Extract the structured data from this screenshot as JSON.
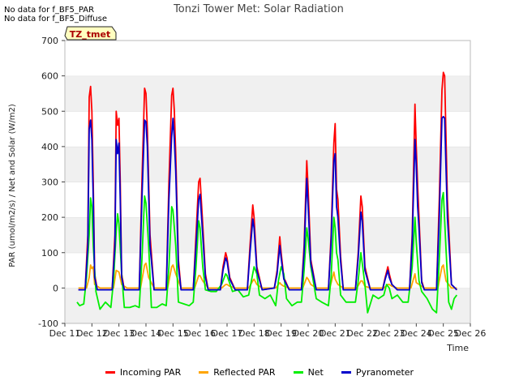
{
  "notes": [
    "No data for f_BF5_PAR",
    "No data for f_BF5_Diffuse"
  ],
  "chart_data": {
    "type": "line",
    "title": "Tonzi Tower Met: Solar Radiation",
    "xlabel": "Time",
    "ylabel": "PAR (umol/m2/s) / Net and Solar (W/m2)",
    "tag": "TZ_tmet",
    "ylim": [
      -100,
      700
    ],
    "yticks": [
      -100,
      0,
      100,
      200,
      300,
      400,
      500,
      600,
      700
    ],
    "xlim": [
      11,
      26
    ],
    "xticks": [
      11,
      12,
      13,
      14,
      15,
      16,
      17,
      18,
      19,
      20,
      21,
      22,
      23,
      24,
      25,
      26
    ],
    "xtick_labels": [
      "Dec 11",
      "Dec 12",
      "Dec 13",
      "Dec 14",
      "Dec 15",
      "Dec 16",
      "Dec 17",
      "Dec 18",
      "Dec 19",
      "Dec 20",
      "Dec 21",
      "Dec 22",
      "Dec 23",
      "Dec 24",
      "Dec 25",
      "Dec 26"
    ],
    "grid": "horizontal bands",
    "legend_position": "bottom",
    "series": [
      {
        "name": "Incoming PAR",
        "color": "#ff0000",
        "x": [
          11.5,
          11.75,
          11.85,
          11.9,
          11.95,
          12.0,
          12.05,
          12.1,
          12.2,
          12.3,
          12.75,
          12.85,
          12.9,
          12.95,
          13.0,
          13.05,
          13.1,
          13.2,
          13.3,
          13.75,
          13.85,
          13.95,
          14.0,
          14.05,
          14.15,
          14.3,
          14.75,
          14.85,
          14.95,
          15.0,
          15.05,
          15.1,
          15.2,
          15.3,
          15.75,
          15.85,
          15.95,
          16.0,
          16.1,
          16.2,
          16.3,
          16.75,
          16.85,
          16.95,
          17.0,
          17.1,
          17.3,
          17.75,
          17.85,
          17.95,
          18.0,
          18.1,
          18.3,
          18.75,
          18.85,
          18.95,
          19.0,
          19.1,
          19.3,
          19.75,
          19.85,
          19.95,
          20.0,
          20.1,
          20.3,
          20.75,
          20.85,
          20.95,
          21.0,
          21.05,
          21.1,
          21.2,
          21.3,
          21.75,
          21.85,
          21.95,
          22.0,
          22.1,
          22.3,
          22.75,
          22.85,
          22.95,
          23.0,
          23.1,
          23.3,
          23.75,
          23.85,
          23.95,
          24.0,
          24.05,
          24.1,
          24.2,
          24.3,
          24.75,
          24.85,
          24.95,
          25.0,
          25.05,
          25.15,
          25.3,
          25.5
        ],
        "y": [
          -5,
          -5,
          150,
          540,
          570,
          500,
          300,
          40,
          -5,
          -5,
          -5,
          150,
          500,
          460,
          480,
          300,
          40,
          -5,
          -5,
          -5,
          300,
          565,
          550,
          450,
          150,
          -5,
          -5,
          300,
          545,
          565,
          500,
          380,
          80,
          -5,
          -5,
          150,
          300,
          310,
          180,
          40,
          -5,
          -5,
          60,
          100,
          85,
          30,
          -5,
          -5,
          120,
          235,
          200,
          60,
          -5,
          0,
          50,
          145,
          100,
          30,
          -5,
          -5,
          120,
          360,
          280,
          80,
          -5,
          -5,
          150,
          410,
          465,
          280,
          250,
          90,
          -5,
          -5,
          100,
          260,
          230,
          60,
          -5,
          -5,
          30,
          60,
          40,
          10,
          -5,
          -5,
          150,
          520,
          400,
          290,
          200,
          20,
          -5,
          -5,
          250,
          560,
          610,
          600,
          250,
          10,
          -5
        ]
      },
      {
        "name": "Reflected PAR",
        "color": "#ffa500",
        "x": [
          11.5,
          11.8,
          11.9,
          11.95,
          12.0,
          12.05,
          12.1,
          12.3,
          12.8,
          12.9,
          13.0,
          13.1,
          13.3,
          13.8,
          13.95,
          14.0,
          14.1,
          14.3,
          14.8,
          14.95,
          15.0,
          15.1,
          15.3,
          15.8,
          15.95,
          16.0,
          16.1,
          16.3,
          16.8,
          16.95,
          17.0,
          17.1,
          17.3,
          17.8,
          17.95,
          18.0,
          18.1,
          18.3,
          18.8,
          18.95,
          19.0,
          19.1,
          19.3,
          19.8,
          19.95,
          20.0,
          20.1,
          20.3,
          20.8,
          20.95,
          21.0,
          21.1,
          21.3,
          21.8,
          21.95,
          22.0,
          22.1,
          22.3,
          22.8,
          22.95,
          23.0,
          23.1,
          23.3,
          23.8,
          23.95,
          24.0,
          24.1,
          24.3,
          24.8,
          24.95,
          25.0,
          25.1,
          25.3,
          25.5
        ],
        "y": [
          0,
          0,
          30,
          65,
          55,
          60,
          10,
          0,
          0,
          50,
          45,
          10,
          0,
          0,
          65,
          70,
          30,
          0,
          0,
          60,
          65,
          40,
          0,
          0,
          35,
          35,
          20,
          0,
          0,
          10,
          10,
          5,
          0,
          0,
          20,
          25,
          10,
          0,
          0,
          15,
          10,
          5,
          0,
          0,
          30,
          25,
          10,
          0,
          0,
          45,
          25,
          10,
          0,
          0,
          20,
          20,
          5,
          0,
          0,
          10,
          10,
          5,
          0,
          0,
          40,
          15,
          10,
          0,
          0,
          60,
          65,
          20,
          0,
          0
        ]
      },
      {
        "name": "Net",
        "color": "#00ee00",
        "x": [
          11.45,
          11.55,
          11.7,
          11.8,
          11.9,
          11.95,
          12.0,
          12.05,
          12.15,
          12.3,
          12.5,
          12.7,
          12.8,
          12.9,
          12.95,
          13.0,
          13.1,
          13.2,
          13.4,
          13.6,
          13.75,
          13.85,
          13.95,
          14.0,
          14.1,
          14.2,
          14.4,
          14.6,
          14.75,
          14.85,
          14.95,
          15.0,
          15.1,
          15.2,
          15.4,
          15.6,
          15.75,
          15.85,
          15.95,
          16.0,
          16.1,
          16.2,
          16.4,
          16.6,
          16.8,
          16.95,
          17.0,
          17.2,
          17.4,
          17.6,
          17.8,
          17.9,
          18.0,
          18.1,
          18.2,
          18.4,
          18.6,
          18.8,
          18.9,
          19.0,
          19.1,
          19.2,
          19.4,
          19.6,
          19.75,
          19.85,
          19.95,
          20.0,
          20.1,
          20.3,
          20.5,
          20.75,
          20.85,
          20.95,
          21.0,
          21.05,
          21.1,
          21.2,
          21.4,
          21.6,
          21.75,
          21.85,
          21.95,
          22.0,
          22.1,
          22.2,
          22.4,
          22.6,
          22.8,
          22.9,
          23.0,
          23.1,
          23.3,
          23.5,
          23.7,
          23.85,
          23.95,
          24.0,
          24.1,
          24.2,
          24.4,
          24.6,
          24.75,
          24.85,
          24.95,
          25.0,
          25.1,
          25.2,
          25.3,
          25.4,
          25.5
        ],
        "y": [
          -40,
          -50,
          -45,
          30,
          150,
          255,
          230,
          120,
          -10,
          -60,
          -40,
          -55,
          20,
          160,
          210,
          180,
          40,
          -55,
          -55,
          -50,
          -55,
          80,
          260,
          240,
          120,
          -55,
          -55,
          -45,
          -50,
          60,
          230,
          220,
          120,
          -40,
          -45,
          -50,
          -40,
          60,
          190,
          170,
          60,
          -5,
          -10,
          -10,
          10,
          40,
          35,
          -10,
          -5,
          -25,
          -20,
          20,
          60,
          40,
          -20,
          -30,
          -20,
          -50,
          20,
          60,
          40,
          -30,
          -50,
          -40,
          -40,
          50,
          170,
          140,
          60,
          -30,
          -40,
          -50,
          30,
          200,
          170,
          100,
          80,
          -20,
          -40,
          -40,
          -40,
          20,
          100,
          70,
          10,
          -70,
          -20,
          -30,
          -20,
          10,
          0,
          -30,
          -20,
          -40,
          -40,
          60,
          200,
          130,
          20,
          -10,
          -30,
          -60,
          -70,
          80,
          250,
          270,
          110,
          -40,
          -60,
          -30,
          -20
        ]
      },
      {
        "name": "Pyranometer",
        "color": "#0000cc",
        "x": [
          11.5,
          11.75,
          11.85,
          11.9,
          11.95,
          12.0,
          12.05,
          12.1,
          12.2,
          12.3,
          12.75,
          12.85,
          12.9,
          12.95,
          13.0,
          13.05,
          13.1,
          13.2,
          13.3,
          13.75,
          13.85,
          13.95,
          14.0,
          14.05,
          14.15,
          14.3,
          14.75,
          14.85,
          14.95,
          15.0,
          15.05,
          15.1,
          15.2,
          15.3,
          15.75,
          15.85,
          15.95,
          16.0,
          16.1,
          16.2,
          16.3,
          16.75,
          16.85,
          16.95,
          17.0,
          17.1,
          17.3,
          17.75,
          17.85,
          17.95,
          18.0,
          18.1,
          18.3,
          18.75,
          18.85,
          18.95,
          19.0,
          19.1,
          19.3,
          19.75,
          19.85,
          19.95,
          20.0,
          20.1,
          20.3,
          20.75,
          20.85,
          20.95,
          21.0,
          21.05,
          21.1,
          21.2,
          21.3,
          21.75,
          21.85,
          21.95,
          22.0,
          22.1,
          22.3,
          22.75,
          22.85,
          22.95,
          23.0,
          23.1,
          23.3,
          23.75,
          23.85,
          23.95,
          24.0,
          24.05,
          24.1,
          24.2,
          24.3,
          24.75,
          24.85,
          24.95,
          25.0,
          25.05,
          25.15,
          25.3,
          25.5
        ],
        "y": [
          -5,
          -5,
          120,
          450,
          475,
          420,
          250,
          30,
          -5,
          -5,
          -5,
          120,
          420,
          380,
          410,
          250,
          30,
          -5,
          -5,
          -5,
          250,
          475,
          470,
          400,
          120,
          -5,
          -5,
          250,
          430,
          480,
          420,
          330,
          60,
          -5,
          -5,
          120,
          250,
          265,
          150,
          30,
          -5,
          -5,
          50,
          85,
          75,
          25,
          -5,
          -5,
          100,
          195,
          170,
          50,
          -5,
          0,
          40,
          120,
          85,
          25,
          -5,
          -5,
          100,
          310,
          230,
          70,
          -5,
          -5,
          130,
          360,
          380,
          230,
          200,
          75,
          -5,
          -5,
          85,
          215,
          190,
          50,
          -5,
          -5,
          25,
          50,
          30,
          10,
          -5,
          -5,
          130,
          420,
          350,
          230,
          170,
          15,
          -5,
          -5,
          200,
          480,
          485,
          480,
          200,
          10,
          -5
        ]
      }
    ]
  }
}
